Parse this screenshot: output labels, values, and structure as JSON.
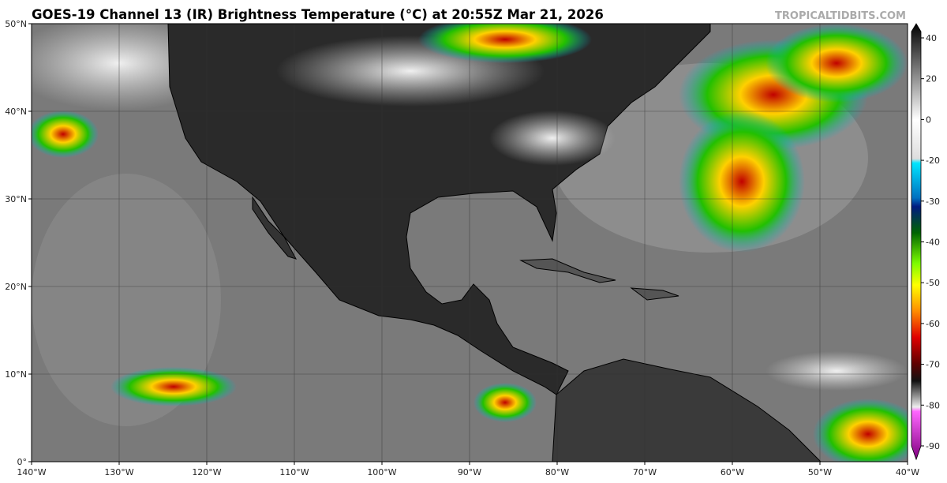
{
  "header": {
    "title": "GOES-19 Channel 13 (IR) Brightness Temperature (°C) at 20:55Z Mar 21, 2026",
    "source": "TROPICALTIDBITS.COM"
  },
  "map": {
    "lat_labels": [
      "0°",
      "10°N",
      "20°N",
      "30°N",
      "40°N",
      "50°N"
    ],
    "lon_labels": [
      "140°W",
      "130°W",
      "120°W",
      "110°W",
      "100°W",
      "90°W",
      "80°W",
      "70°W",
      "60°W",
      "50°W",
      "40°W"
    ]
  },
  "colorbar": {
    "ticks": [
      40,
      20,
      0,
      -20,
      -30,
      -40,
      -50,
      -60,
      -70,
      -80,
      -90
    ]
  }
}
